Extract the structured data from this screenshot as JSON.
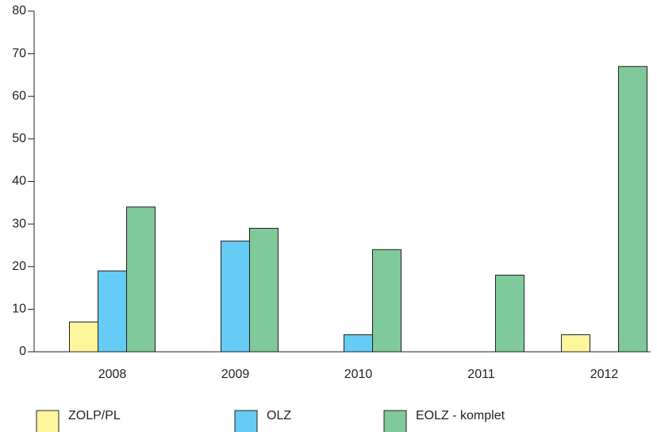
{
  "chart_data": {
    "type": "bar",
    "categories": [
      "2008",
      "2009",
      "2010",
      "2011",
      "2012"
    ],
    "series": [
      {
        "name": "ZOLP/PL",
        "color": "#fff59a",
        "values": [
          7,
          0,
          0,
          0,
          4
        ]
      },
      {
        "name": "OLZ",
        "color": "#66ccf5",
        "values": [
          19,
          26,
          4,
          0,
          0
        ]
      },
      {
        "name": "EOLZ - komplet",
        "color": "#80c99b",
        "values": [
          34,
          29,
          24,
          18,
          67
        ]
      }
    ],
    "ylim": [
      0,
      80
    ],
    "yticks": [
      0,
      10,
      20,
      30,
      40,
      50,
      60,
      70,
      80
    ],
    "grid": false,
    "legend": "bottom"
  }
}
